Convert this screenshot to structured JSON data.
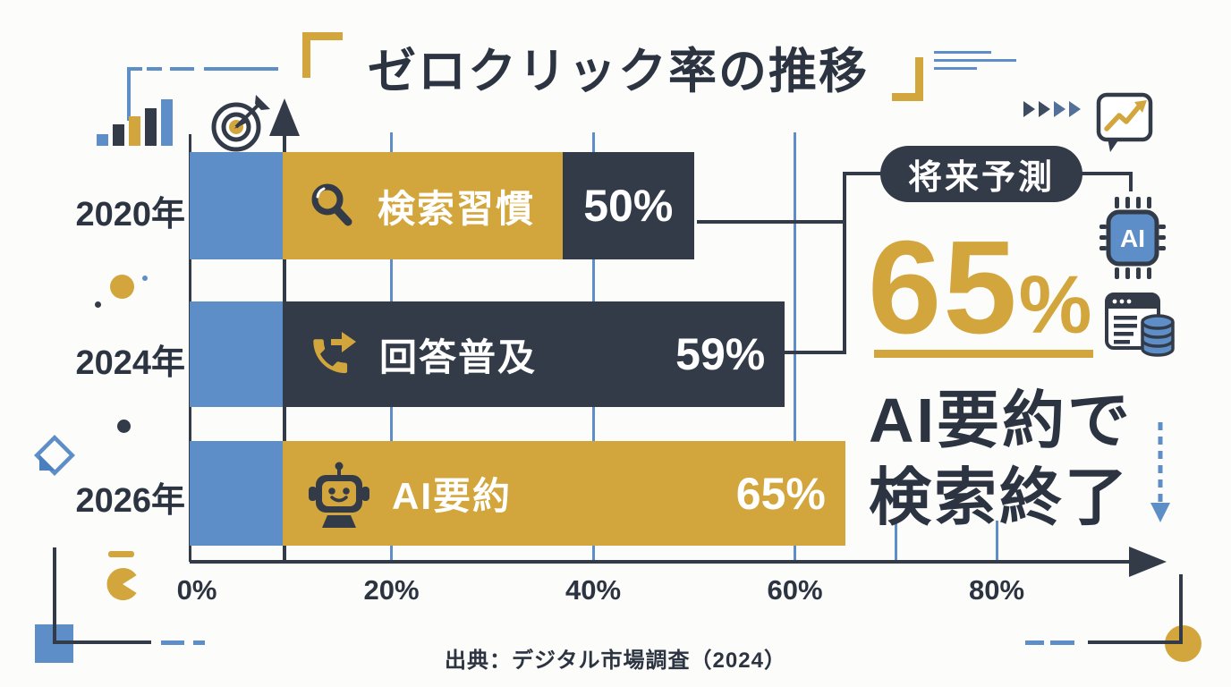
{
  "title": {
    "text": "ゼロクリック率の推移"
  },
  "chart_data": {
    "type": "bar",
    "orientation": "horizontal",
    "title": "ゼロクリック率の推移",
    "categories": [
      "2020年",
      "2024年",
      "2026年"
    ],
    "series": [
      {
        "name": "ゼロクリック率",
        "values": [
          50,
          59,
          65
        ]
      }
    ],
    "rows": [
      {
        "year": "2020年",
        "label": "検索習慣",
        "value": 50,
        "value_text": "50%",
        "icon": "magnifier-icon",
        "bar_color": "#d2a63c",
        "value_box_color": "#333b49"
      },
      {
        "year": "2024年",
        "label": "回答普及",
        "value": 59,
        "value_text": "59%",
        "icon": "phone-forward-icon",
        "bar_color": "#333b49"
      },
      {
        "year": "2026年",
        "label": "AI要約",
        "value": 65,
        "value_text": "65%",
        "icon": "robot-icon",
        "bar_color": "#d2a63c"
      }
    ],
    "x_ticks": [
      {
        "label": "0%",
        "pct": 0
      },
      {
        "label": "20%",
        "pct": 20
      },
      {
        "label": "40%",
        "pct": 40
      },
      {
        "label": "60%",
        "pct": 60
      },
      {
        "label": "80%",
        "pct": 80
      }
    ],
    "gridlines_full_pct": [
      20,
      40,
      60
    ],
    "gridlines_stub_pct": [
      70,
      80
    ],
    "xlim": [
      0,
      95
    ],
    "grid": true,
    "base_segment_note": "blue base segment from 0% to axis arrow line (~9%) on every bar"
  },
  "annotation": {
    "badge_label": "将来予測",
    "big_value": "65",
    "big_unit": "%",
    "headline_line1": "AI要約で",
    "headline_line2": "検索終了"
  },
  "source": {
    "text": "出典：デジタル市場調査（2024）"
  },
  "colors": {
    "navy": "#333b49",
    "gold": "#d2a63c",
    "blue": "#5e8ec7",
    "text": "#2c3442",
    "bar_text": "#ffffff",
    "background": "#fcfcfa"
  },
  "icons": [
    "bar-chart-icon",
    "target-dart-icon",
    "magnifier-icon",
    "phone-forward-icon",
    "robot-icon",
    "trend-bubble-icon",
    "play-arrows-icon",
    "ai-chip-icon",
    "browser-database-icon",
    "dashed-down-arrow-icon",
    "diamond-icon",
    "pacman-icon",
    "corner-bracket-icons"
  ]
}
